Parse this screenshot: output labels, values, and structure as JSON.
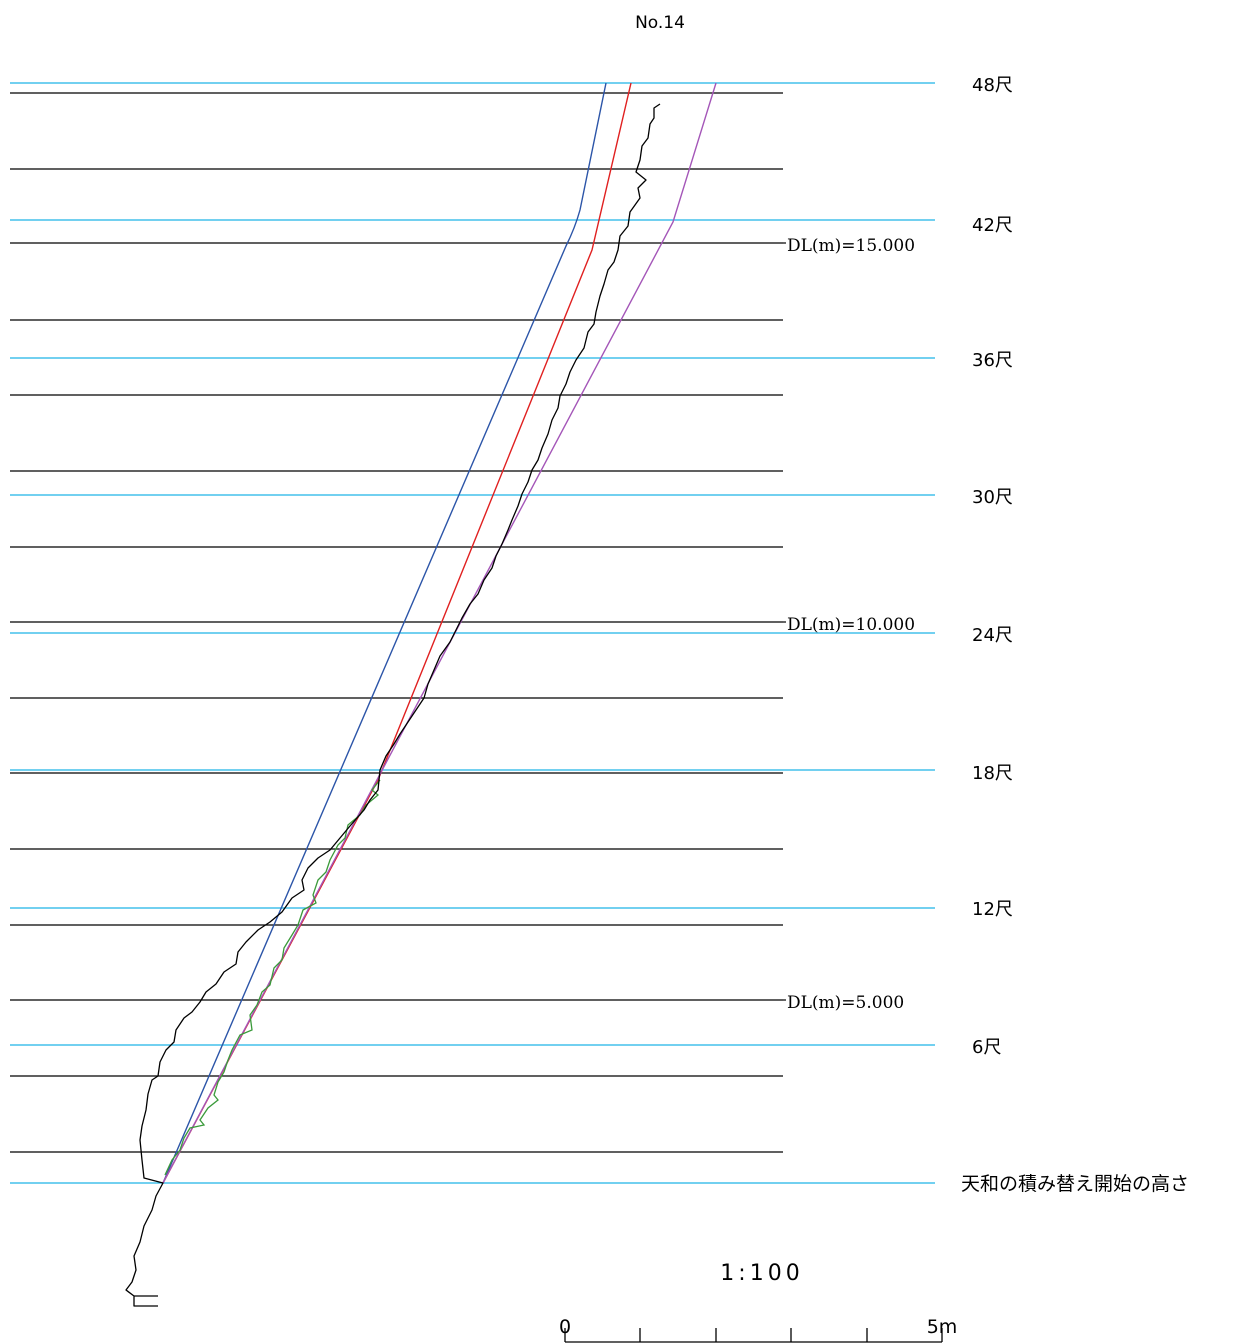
{
  "title": "No.14",
  "colors": {
    "datum_line": "#000000",
    "shaku_line": "#1eb4e6",
    "profile": "#000000",
    "blue_line": "#2c55a8",
    "red_line": "#e02020",
    "purple_line": "#a456b8",
    "green_line": "#3a9a3a"
  },
  "shaku_labels": [
    "48尺",
    "42尺",
    "36尺",
    "30尺",
    "24尺",
    "18尺",
    "12尺",
    "6尺",
    "天和の積み替え開始の高さ"
  ],
  "dl_labels": [
    "DL(m)=15.000",
    "DL(m)=10.000",
    "DL(m)=5.000"
  ],
  "scale": {
    "ratio": "1:100",
    "start_label": "0",
    "end_label": "5m"
  }
}
